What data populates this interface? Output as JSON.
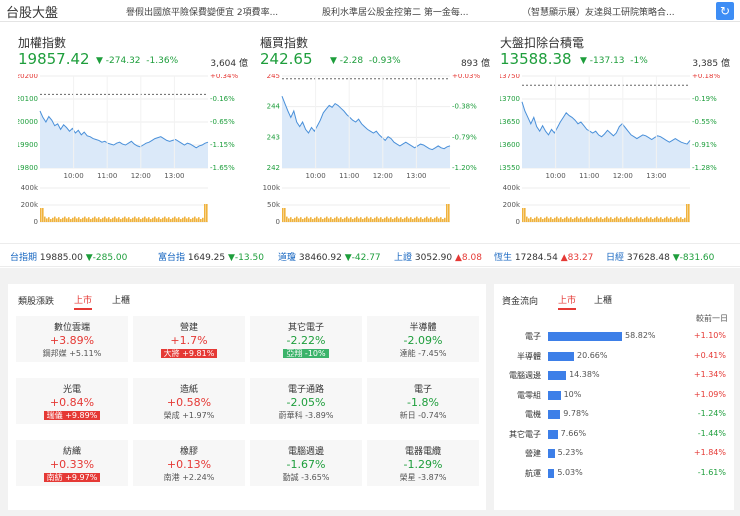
{
  "header": {
    "title": "台股大盤",
    "news": [
      "譽假出國旅平險保費變便宜 2項費率...",
      "股利水準居公股金控第二 第一金每...",
      "（智慧顯示展）友達與工研院策略合..."
    ]
  },
  "panels": [
    {
      "name": "加權指數",
      "value": "19857.42",
      "change": "-274.32",
      "pct": "-1.36%",
      "volume": "3,604 億",
      "y_ticks": [
        "20200",
        "20100",
        "20000",
        "19900",
        "19800"
      ],
      "r_ticks": [
        "+0.34%",
        "-0.16%",
        "-0.65%",
        "-1.15%",
        "-1.65%"
      ],
      "x_ticks": [
        "10:00",
        "11:00",
        "12:00",
        "13:00"
      ],
      "vol_ticks": [
        "400k",
        "200k",
        "0"
      ],
      "ref_level": 0.8,
      "line": [
        0.62,
        0.55,
        0.5,
        0.56,
        0.52,
        0.46,
        0.48,
        0.42,
        0.47,
        0.44,
        0.4,
        0.43,
        0.38,
        0.41,
        0.36,
        0.39,
        0.35,
        0.34,
        0.32,
        0.31,
        0.3,
        0.28,
        0.29,
        0.27,
        0.26,
        0.25,
        0.27,
        0.28,
        0.26,
        0.25,
        0.27,
        0.29,
        0.26,
        0.24,
        0.23,
        0.25,
        0.27,
        0.28,
        0.3,
        0.32,
        0.33,
        0.34,
        0.32,
        0.3,
        0.29,
        0.3,
        0.31,
        0.29,
        0.27,
        0.25,
        0.27,
        0.26,
        0.24,
        0.22,
        0.24,
        0.25,
        0.27,
        0.28
      ]
    },
    {
      "name": "櫃買指數",
      "value": "242.65",
      "change": "-2.28",
      "pct": "-0.93%",
      "volume": "893 億",
      "y_ticks": [
        "245",
        "244",
        "243",
        "242"
      ],
      "r_ticks": [
        "+0.03%",
        "-0.38%",
        "-0.79%",
        "-1.20%"
      ],
      "x_ticks": [
        "10:00",
        "11:00",
        "12:00",
        "13:00"
      ],
      "vol_ticks": [
        "100k",
        "50k",
        "0"
      ],
      "ref_level": 0.97,
      "line": [
        0.78,
        0.7,
        0.62,
        0.55,
        0.62,
        0.5,
        0.45,
        0.5,
        0.42,
        0.38,
        0.44,
        0.4,
        0.46,
        0.52,
        0.6,
        0.64,
        0.68,
        0.66,
        0.7,
        0.68,
        0.65,
        0.62,
        0.58,
        0.55,
        0.52,
        0.5,
        0.53,
        0.48,
        0.45,
        0.42,
        0.4,
        0.38,
        0.4,
        0.36,
        0.33,
        0.3,
        0.34,
        0.32,
        0.28,
        0.26,
        0.24,
        0.26,
        0.28,
        0.26,
        0.24,
        0.22,
        0.24,
        0.26,
        0.25,
        0.23,
        0.21,
        0.2,
        0.22,
        0.24,
        0.22,
        0.21,
        0.23,
        0.24
      ]
    },
    {
      "name": "大盤扣除台積電",
      "value": "13588.38",
      "change": "-137.13",
      "pct": "-1%",
      "volume": "3,385 億",
      "y_ticks": [
        "13750",
        "13700",
        "13650",
        "13600",
        "13550"
      ],
      "r_ticks": [
        "+0.18%",
        "-0.19%",
        "-0.55%",
        "-0.91%",
        "-1.28%"
      ],
      "x_ticks": [
        "10:00",
        "11:00",
        "12:00",
        "13:00"
      ],
      "vol_ticks": [
        "400k",
        "200k",
        "0"
      ],
      "ref_level": 0.9,
      "line": [
        0.72,
        0.62,
        0.55,
        0.48,
        0.55,
        0.45,
        0.4,
        0.46,
        0.4,
        0.36,
        0.42,
        0.38,
        0.44,
        0.5,
        0.55,
        0.6,
        0.57,
        0.55,
        0.52,
        0.48,
        0.5,
        0.46,
        0.42,
        0.4,
        0.38,
        0.4,
        0.36,
        0.34,
        0.37,
        0.41,
        0.38,
        0.35,
        0.38,
        0.45,
        0.48,
        0.44,
        0.4,
        0.36,
        0.34,
        0.32,
        0.34,
        0.36,
        0.35,
        0.33,
        0.31,
        0.33,
        0.35,
        0.34,
        0.32,
        0.3,
        0.28,
        0.3,
        0.32,
        0.3,
        0.28,
        0.27,
        0.26,
        0.3
      ]
    }
  ],
  "ticker": [
    {
      "name": "台指期",
      "value": "19885.00",
      "change": "▼-285.00",
      "dir": "dn"
    },
    {
      "name": "富台指",
      "value": "1649.25",
      "change": "▼-13.50",
      "dir": "dn"
    },
    {
      "name": "道瓊",
      "value": "38460.92",
      "change": "▼-42.77",
      "dir": "dn"
    },
    {
      "name": "上證",
      "value": "3052.90",
      "change": "▲8.08",
      "dir": "up"
    },
    {
      "name": "恆生",
      "value": "17284.54",
      "change": "▲83.27",
      "dir": "up"
    },
    {
      "name": "日經",
      "value": "37628.48",
      "change": "▼-831.60",
      "dir": "dn"
    }
  ],
  "sectors": {
    "title": "類股漲跌",
    "tabs": [
      "上市",
      "上櫃"
    ],
    "cells": [
      {
        "name": "數位雲端",
        "pct": "+3.89%",
        "sub": "鋼邦媒 +5.11%",
        "dir": "up",
        "badge": ""
      },
      {
        "name": "營建",
        "pct": "+1.7%",
        "sub": "大將 +9.81%",
        "dir": "up",
        "badge": "up"
      },
      {
        "name": "其它電子",
        "pct": "-2.22%",
        "sub": "亞翔 -10%",
        "dir": "dn",
        "badge": "dn"
      },
      {
        "name": "半導體",
        "pct": "-2.09%",
        "sub": "達能 -7.45%",
        "dir": "dn",
        "badge": ""
      },
      {
        "name": "光電",
        "pct": "+0.84%",
        "sub": "瑞儀 +9.89%",
        "dir": "up",
        "badge": "up"
      },
      {
        "name": "造紙",
        "pct": "+0.58%",
        "sub": "榮成 +1.97%",
        "dir": "up",
        "badge": ""
      },
      {
        "name": "電子通路",
        "pct": "-2.05%",
        "sub": "蔚華科 -3.89%",
        "dir": "dn",
        "badge": ""
      },
      {
        "name": "電子",
        "pct": "-1.8%",
        "sub": "新日 -0.74%",
        "dir": "dn",
        "badge": ""
      },
      {
        "name": "紡織",
        "pct": "+0.33%",
        "sub": "南紡 +9.97%",
        "dir": "up",
        "badge": "up"
      },
      {
        "name": "橡膠",
        "pct": "+0.13%",
        "sub": "南港 +2.24%",
        "dir": "up",
        "badge": ""
      },
      {
        "name": "電腦週邊",
        "pct": "-1.67%",
        "sub": "勤誠 -3.65%",
        "dir": "dn",
        "badge": ""
      },
      {
        "name": "電器電纜",
        "pct": "-1.29%",
        "sub": "榮星 -3.87%",
        "dir": "dn",
        "badge": ""
      }
    ]
  },
  "flow": {
    "title": "資金流向",
    "tabs": [
      "上市",
      "上櫃"
    ],
    "col_header": "較前一日",
    "rows": [
      {
        "name": "電子",
        "pct": "58.82%",
        "share": 0.5882,
        "chg": "+1.10%",
        "dir": "up"
      },
      {
        "name": "半導體",
        "pct": "20.66%",
        "share": 0.2066,
        "chg": "+0.41%",
        "dir": "up"
      },
      {
        "name": "電腦週邊",
        "pct": "14.38%",
        "share": 0.1438,
        "chg": "+1.34%",
        "dir": "up"
      },
      {
        "name": "電零組",
        "pct": "10%",
        "share": 0.1,
        "chg": "+1.09%",
        "dir": "up"
      },
      {
        "name": "電機",
        "pct": "9.78%",
        "share": 0.0978,
        "chg": "-1.24%",
        "dir": "dn"
      },
      {
        "name": "其它電子",
        "pct": "7.66%",
        "share": 0.0766,
        "chg": "-1.44%",
        "dir": "dn"
      },
      {
        "name": "營建",
        "pct": "5.23%",
        "share": 0.0523,
        "chg": "+1.84%",
        "dir": "up"
      },
      {
        "name": "航運",
        "pct": "5.03%",
        "share": 0.0503,
        "chg": "-1.61%",
        "dir": "dn"
      }
    ]
  }
}
